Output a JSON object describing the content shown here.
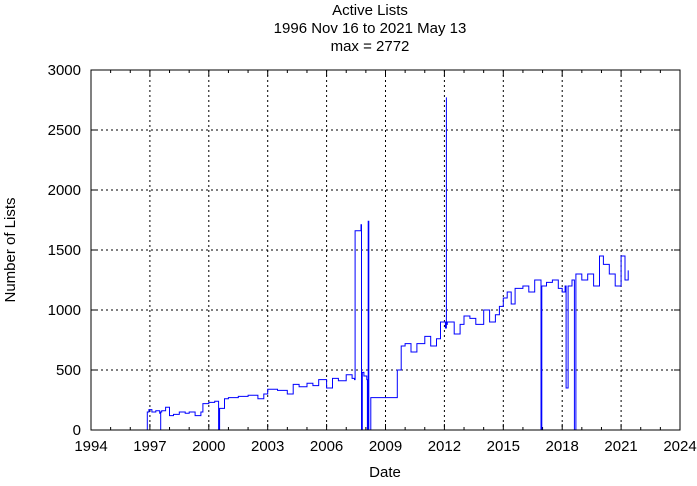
{
  "chart_data": {
    "type": "line",
    "title": "Active Lists",
    "subtitle": "1996 Nov 16 to 2021 May 13",
    "annotation": "max = 2772",
    "xlabel": "Date",
    "ylabel": "Number of Lists",
    "xlim": [
      1994,
      2024
    ],
    "ylim": [
      0,
      3000
    ],
    "xticks": [
      1994,
      1997,
      2000,
      2003,
      2006,
      2009,
      2012,
      2015,
      2018,
      2021,
      2024
    ],
    "yticks": [
      0,
      500,
      1000,
      1500,
      2000,
      2500,
      3000
    ],
    "grid": true,
    "series": [
      {
        "name": "Active Lists",
        "color": "#0000ff",
        "x": [
          1996.87,
          1996.87,
          1996.95,
          1997.1,
          1997.3,
          1997.5,
          1997.55,
          1997.55,
          1997.6,
          1997.8,
          1998.0,
          1998.2,
          1998.5,
          1998.8,
          1999.0,
          1999.3,
          1999.6,
          1999.7,
          2000.0,
          2000.3,
          2000.5,
          2000.5,
          2000.55,
          2000.8,
          2001.0,
          2001.5,
          2002.0,
          2002.5,
          2002.8,
          2003.0,
          2003.5,
          2004.0,
          2004.3,
          2004.6,
          2005.0,
          2005.3,
          2005.6,
          2006.0,
          2006.3,
          2006.6,
          2007.0,
          2007.3,
          2007.42,
          2007.45,
          2007.75,
          2007.78,
          2007.78,
          2007.82,
          2007.9,
          2008.05,
          2008.08,
          2008.08,
          2008.12,
          2008.12,
          2008.15,
          2008.25,
          2009.55,
          2009.6,
          2009.8,
          2010.0,
          2010.3,
          2010.6,
          2011.0,
          2011.3,
          2011.6,
          2011.8,
          2012.05,
          2012.1,
          2012.1,
          2012.15,
          2012.5,
          2012.8,
          2013.0,
          2013.3,
          2013.6,
          2014.0,
          2014.3,
          2014.6,
          2014.8,
          2015.0,
          2015.2,
          2015.4,
          2015.6,
          2016.0,
          2016.3,
          2016.6,
          2016.9,
          2016.92,
          2016.92,
          2016.96,
          2017.2,
          2017.5,
          2017.8,
          2018.0,
          2018.15,
          2018.2,
          2018.3,
          2018.5,
          2018.62,
          2018.62,
          2018.7,
          2019.0,
          2019.3,
          2019.6,
          2019.9,
          2020.1,
          2020.4,
          2020.7,
          2021.0,
          2021.2,
          2021.36
        ],
        "y": [
          0,
          150,
          170,
          150,
          160,
          140,
          0,
          150,
          160,
          190,
          120,
          130,
          150,
          140,
          150,
          120,
          150,
          220,
          230,
          240,
          220,
          0,
          180,
          260,
          270,
          280,
          290,
          260,
          300,
          340,
          330,
          300,
          380,
          360,
          390,
          370,
          420,
          350,
          430,
          410,
          460,
          430,
          420,
          1660,
          1710,
          1710,
          0,
          480,
          450,
          420,
          420,
          0,
          0,
          1740,
          0,
          270,
          270,
          500,
          700,
          720,
          650,
          720,
          780,
          700,
          760,
          900,
          850,
          2772,
          880,
          900,
          800,
          880,
          950,
          930,
          880,
          1000,
          900,
          960,
          1030,
          1100,
          1150,
          1050,
          1180,
          1200,
          1150,
          1250,
          1250,
          1250,
          0,
          1200,
          1230,
          1250,
          1180,
          1150,
          1200,
          350,
          1200,
          1250,
          1250,
          0,
          1300,
          1250,
          1300,
          1200,
          1450,
          1380,
          1300,
          1200,
          1450,
          1250,
          1330
        ]
      }
    ]
  }
}
